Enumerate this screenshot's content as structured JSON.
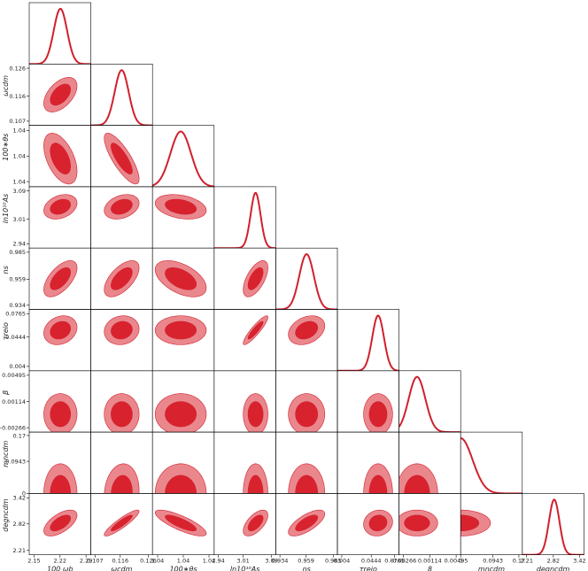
{
  "chart_data": {
    "type": "corner",
    "line_color": "#d0202d",
    "inner_color": "#d8232f",
    "outer_color": "#ea878d",
    "params": [
      {
        "label": "100 ωb",
        "lim": [
          2.137,
          2.303
        ],
        "ticks": [
          2.15,
          2.22,
          2.29
        ],
        "mean": 2.221,
        "sigma": 0.018
      },
      {
        "label": "ωcdm",
        "lim": [
          0.1055,
          0.1275
        ],
        "ticks": [
          0.107,
          0.116,
          0.126
        ],
        "mean": 0.1165,
        "sigma": 0.0025
      },
      {
        "label": "100∗θs",
        "lim": [
          1.0413,
          1.0425
        ],
        "ticks": [
          {
            "value": 1.0414,
            "label": "1.04"
          },
          {
            "value": 1.0419,
            "label": "1.04"
          },
          {
            "value": 1.0424,
            "label": "1.04"
          }
        ],
        "mean": 1.04185,
        "sigma": 0.0002
      },
      {
        "label": "ln10¹⁰As",
        "lim": [
          2.928,
          3.102
        ],
        "ticks": [
          2.94,
          3.01,
          3.09
        ],
        "mean": 3.045,
        "sigma": 0.014
      },
      {
        "label": "ns",
        "lim": [
          0.93,
          0.989
        ],
        "ticks": [
          0.934,
          0.959,
          0.985
        ],
        "mean": 0.9595,
        "sigma": 0.007
      },
      {
        "label": "τreio",
        "lim": [
          -0.002,
          0.0825
        ],
        "ticks": [
          0.004,
          0.0444,
          0.0765
        ],
        "mean": 0.0538,
        "sigma": 0.008
      },
      {
        "label": "β",
        "lim": [
          -0.0033,
          0.0056
        ],
        "ticks": [
          -0.00266,
          0.00114,
          0.00495
        ],
        "mean": -0.0007,
        "sigma": 0.0012
      },
      {
        "label": "mncdm",
        "lim": [
          0,
          0.18
        ],
        "ticks": [
          0,
          0.0943,
          0.17
        ],
        "mean": 0,
        "sigma": 0.035
      },
      {
        "label": "degncdm",
        "lim": [
          2.11,
          3.52
        ],
        "ticks": [
          2.21,
          2.82,
          3.42
        ],
        "mean": 2.84,
        "sigma": 0.12
      }
    ],
    "correlations": [
      [
        0.5
      ],
      [
        -0.5,
        -0.8
      ],
      [
        0.3,
        0.3,
        -0.3
      ],
      [
        0.6,
        0.6,
        -0.5,
        0.6
      ],
      [
        0.2,
        0.1,
        0,
        0.9,
        0.3
      ],
      [
        0,
        0,
        0,
        0,
        0,
        0
      ],
      [
        0,
        0.1,
        0,
        0,
        0,
        0,
        0
      ],
      [
        0.6,
        0.9,
        -0.8,
        0.6,
        0.7,
        0.1,
        0,
        0
      ]
    ]
  }
}
